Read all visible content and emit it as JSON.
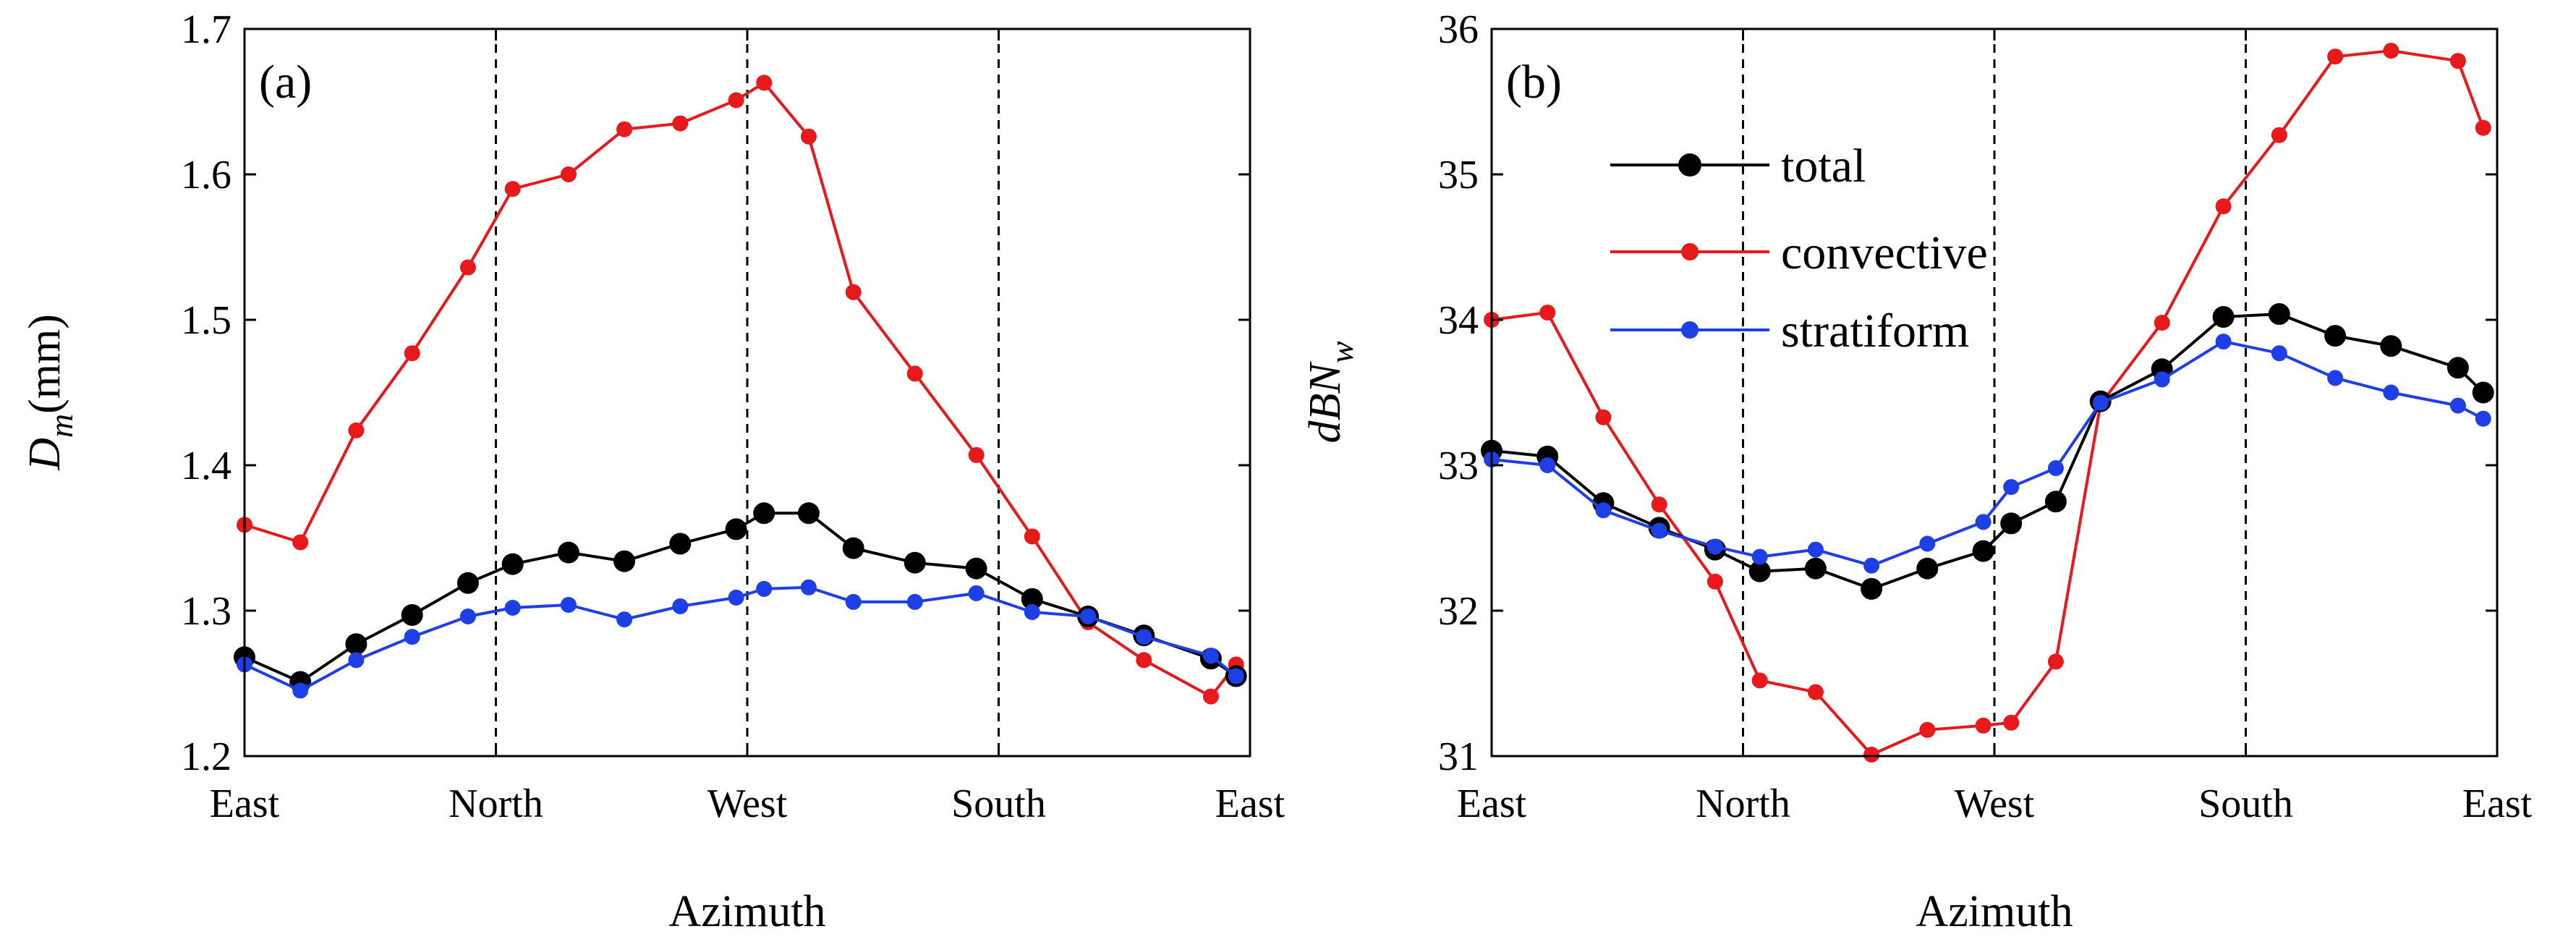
{
  "chart_data": [
    {
      "type": "line",
      "panel_label": "(a)",
      "ylabel_main": "D",
      "ylabel_sub": "m",
      "ylabel_unit": "(mm)",
      "xlabel": "Azimuth",
      "x_tick_labels": [
        "East",
        "North",
        "West",
        "South",
        "East"
      ],
      "y_tick_labels": [
        "1.2",
        "1.3",
        "1.4",
        "1.5",
        "1.6",
        "1.7"
      ],
      "ylim": [
        1.2,
        1.7
      ],
      "xlim": [
        0,
        360
      ],
      "dashed_lines_at": [
        90,
        180,
        270
      ],
      "x": [
        0,
        20,
        40,
        60,
        80,
        96,
        116,
        136,
        156,
        176,
        186,
        202,
        218,
        240,
        262,
        282,
        302,
        322,
        346,
        355
      ],
      "series": [
        {
          "name": "total",
          "color": "#000000",
          "values": [
            1.268,
            1.251,
            1.277,
            1.297,
            1.319,
            1.332,
            1.34,
            1.334,
            1.346,
            1.356,
            1.367,
            1.367,
            1.343,
            1.333,
            1.329,
            1.308,
            1.296,
            1.283,
            1.267,
            1.255
          ]
        },
        {
          "name": "convective",
          "color": "#e8191b",
          "values": [
            1.359,
            1.347,
            1.424,
            1.477,
            1.536,
            1.59,
            1.6,
            1.631,
            1.635,
            1.651,
            1.663,
            1.626,
            1.519,
            1.463,
            1.407,
            1.351,
            1.292,
            1.266,
            1.241,
            1.263
          ]
        },
        {
          "name": "stratiform",
          "color": "#1f3fe6",
          "values": [
            1.263,
            1.245,
            1.266,
            1.282,
            1.296,
            1.302,
            1.304,
            1.294,
            1.303,
            1.309,
            1.315,
            1.316,
            1.306,
            1.306,
            1.312,
            1.299,
            1.296,
            1.282,
            1.269,
            1.255
          ]
        }
      ]
    },
    {
      "type": "line",
      "panel_label": "(b)",
      "ylabel_main": "dBN",
      "ylabel_sub": "w",
      "ylabel_unit": "",
      "xlabel": "Azimuth",
      "x_tick_labels": [
        "East",
        "North",
        "West",
        "South",
        "East"
      ],
      "y_tick_labels": [
        "31",
        "32",
        "33",
        "34",
        "35",
        "36"
      ],
      "ylim": [
        31,
        36
      ],
      "xlim": [
        0,
        360
      ],
      "dashed_lines_at": [
        90,
        180,
        270
      ],
      "x": [
        0,
        20,
        40,
        60,
        80,
        96,
        116,
        136,
        156,
        176,
        186,
        202,
        218,
        240,
        262,
        282,
        302,
        322,
        346,
        355
      ],
      "series": [
        {
          "name": "total",
          "color": "#000000",
          "values": [
            33.1,
            33.06,
            32.74,
            32.57,
            32.42,
            32.27,
            32.29,
            32.15,
            32.29,
            32.41,
            32.6,
            32.75,
            33.44,
            33.66,
            34.02,
            34.04,
            33.89,
            33.82,
            33.67,
            33.5
          ]
        },
        {
          "name": "convective",
          "color": "#e8191b",
          "values": [
            34.0,
            34.05,
            33.33,
            32.73,
            32.2,
            31.52,
            31.44,
            31.01,
            31.18,
            31.21,
            31.23,
            31.65,
            33.42,
            33.98,
            34.78,
            35.27,
            35.81,
            35.85,
            35.78,
            35.32
          ]
        },
        {
          "name": "stratiform",
          "color": "#1f3fe6",
          "values": [
            33.04,
            33.0,
            32.69,
            32.55,
            32.44,
            32.37,
            32.42,
            32.31,
            32.46,
            32.61,
            32.85,
            32.98,
            33.43,
            33.59,
            33.85,
            33.77,
            33.6,
            33.5,
            33.41,
            33.32
          ]
        }
      ],
      "legend": {
        "placement": "top-left",
        "entries": [
          "total",
          "convective",
          "stratiform"
        ]
      }
    }
  ]
}
